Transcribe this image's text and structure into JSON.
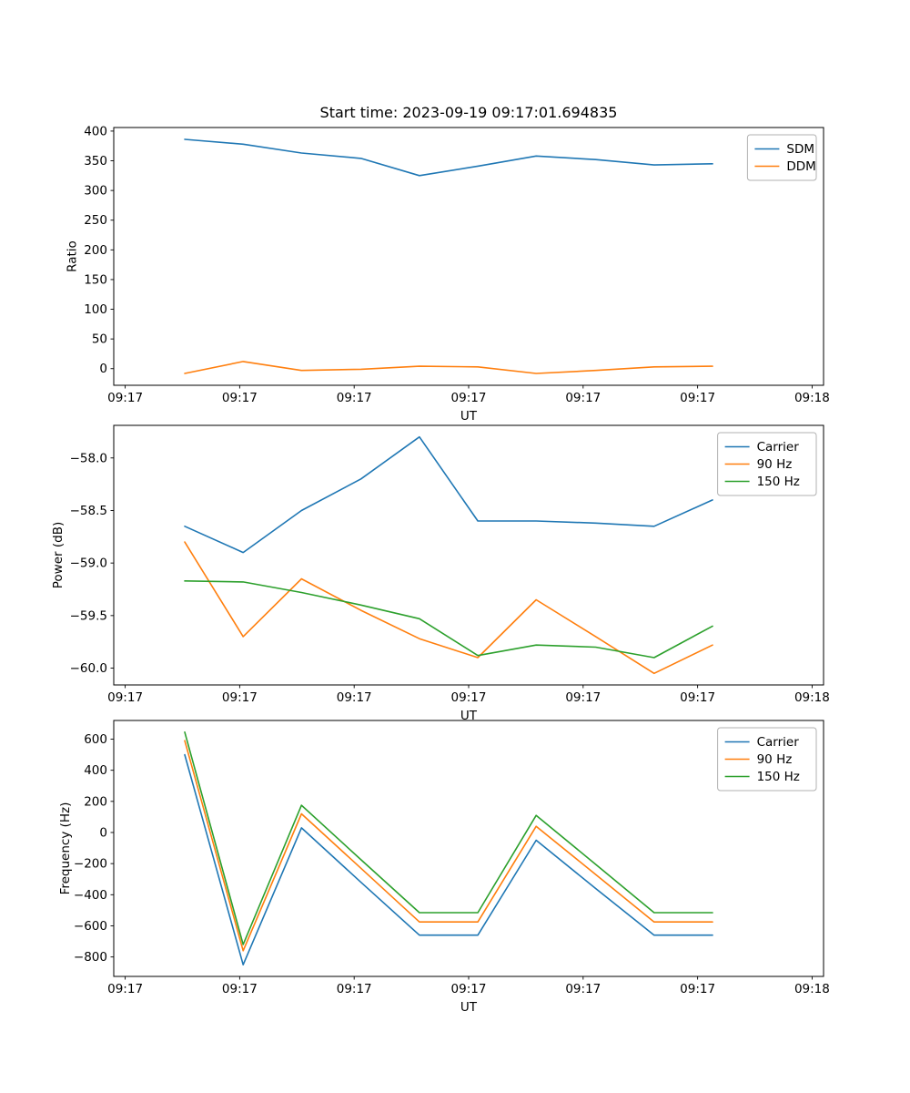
{
  "figure_title": "Start time: 2023-09-19 09:17:01.694835",
  "chart_data": [
    {
      "type": "line",
      "title": "Start time: 2023-09-19 09:17:01.694835",
      "xlabel": "UT",
      "ylabel": "Ratio",
      "legend_position": "upper right",
      "grid": false,
      "x": [
        5.2,
        10.3,
        15.4,
        20.6,
        25.7,
        30.8,
        35.9,
        41.1,
        46.2,
        51.3
      ],
      "xlim": [
        -1,
        61
      ],
      "xticks": [
        0,
        10,
        20,
        30,
        40,
        50,
        60
      ],
      "xtick_labels": [
        "09:17",
        "09:17",
        "09:17",
        "09:17",
        "09:17",
        "09:17",
        "09:18"
      ],
      "ylim": [
        -28,
        406
      ],
      "yticks": [
        0,
        50,
        100,
        150,
        200,
        250,
        300,
        350,
        400
      ],
      "ytick_labels": [
        "0",
        "50",
        "100",
        "150",
        "200",
        "250",
        "300",
        "350",
        "400"
      ],
      "series": [
        {
          "name": "SDM",
          "color": "#1f77b4",
          "values": [
            386,
            378,
            363,
            354,
            325,
            341,
            358,
            352,
            343,
            345
          ]
        },
        {
          "name": "DDM",
          "color": "#ff7f0e",
          "values": [
            -8,
            12,
            -3,
            -1,
            4,
            3,
            -8,
            -3,
            3,
            4
          ]
        }
      ]
    },
    {
      "type": "line",
      "title": "",
      "xlabel": "UT",
      "ylabel": "Power (dB)",
      "legend_position": "upper right",
      "grid": false,
      "x": [
        5.2,
        10.3,
        15.4,
        20.6,
        25.7,
        30.8,
        35.9,
        41.1,
        46.2,
        51.3
      ],
      "xlim": [
        -1,
        61
      ],
      "xticks": [
        0,
        10,
        20,
        30,
        40,
        50,
        60
      ],
      "xtick_labels": [
        "09:17",
        "09:17",
        "09:17",
        "09:17",
        "09:17",
        "09:17",
        "09:18"
      ],
      "ylim": [
        -60.16,
        -57.69
      ],
      "yticks": [
        -60.0,
        -59.5,
        -59.0,
        -58.5,
        -58.0
      ],
      "ytick_labels": [
        "−60.0",
        "−59.5",
        "−59.0",
        "−58.5",
        "−58.0"
      ],
      "series": [
        {
          "name": "Carrier",
          "color": "#1f77b4",
          "values": [
            -58.65,
            -58.9,
            -58.5,
            -58.2,
            -57.8,
            -58.6,
            -58.6,
            -58.62,
            -58.65,
            -58.4
          ]
        },
        {
          "name": "90 Hz",
          "color": "#ff7f0e",
          "values": [
            -58.8,
            -59.7,
            -59.15,
            -59.45,
            -59.72,
            -59.9,
            -59.35,
            -59.7,
            -60.05,
            -59.78
          ]
        },
        {
          "name": "150 Hz",
          "color": "#2ca02c",
          "values": [
            -59.17,
            -59.18,
            -59.28,
            -59.4,
            -59.53,
            -59.88,
            -59.78,
            -59.8,
            -59.9,
            -59.6
          ]
        }
      ]
    },
    {
      "type": "line",
      "title": "",
      "xlabel": "UT",
      "ylabel": "Frequency (Hz)",
      "legend_position": "upper right",
      "grid": false,
      "x": [
        5.2,
        10.3,
        15.4,
        20.6,
        25.7,
        30.8,
        35.9,
        41.1,
        46.2,
        51.3
      ],
      "xlim": [
        -1,
        61
      ],
      "xticks": [
        0,
        10,
        20,
        30,
        40,
        50,
        60
      ],
      "xtick_labels": [
        "09:17",
        "09:17",
        "09:17",
        "09:17",
        "09:17",
        "09:17",
        "09:18"
      ],
      "ylim": [
        -925,
        720
      ],
      "yticks": [
        -800,
        -600,
        -400,
        -200,
        0,
        200,
        400,
        600
      ],
      "ytick_labels": [
        "−800",
        "−600",
        "−400",
        "−200",
        "0",
        "200",
        "400",
        "600"
      ],
      "series": [
        {
          "name": "Carrier",
          "color": "#1f77b4",
          "values": [
            500,
            -850,
            30,
            -320,
            -660,
            -660,
            -50,
            -360,
            -660,
            -660
          ]
        },
        {
          "name": "90 Hz",
          "color": "#ff7f0e",
          "values": [
            590,
            -760,
            120,
            -230,
            -575,
            -575,
            40,
            -270,
            -575,
            -575
          ]
        },
        {
          "name": "150 Hz",
          "color": "#2ca02c",
          "values": [
            645,
            -720,
            175,
            -175,
            -515,
            -515,
            110,
            -205,
            -515,
            -515
          ]
        }
      ]
    }
  ]
}
